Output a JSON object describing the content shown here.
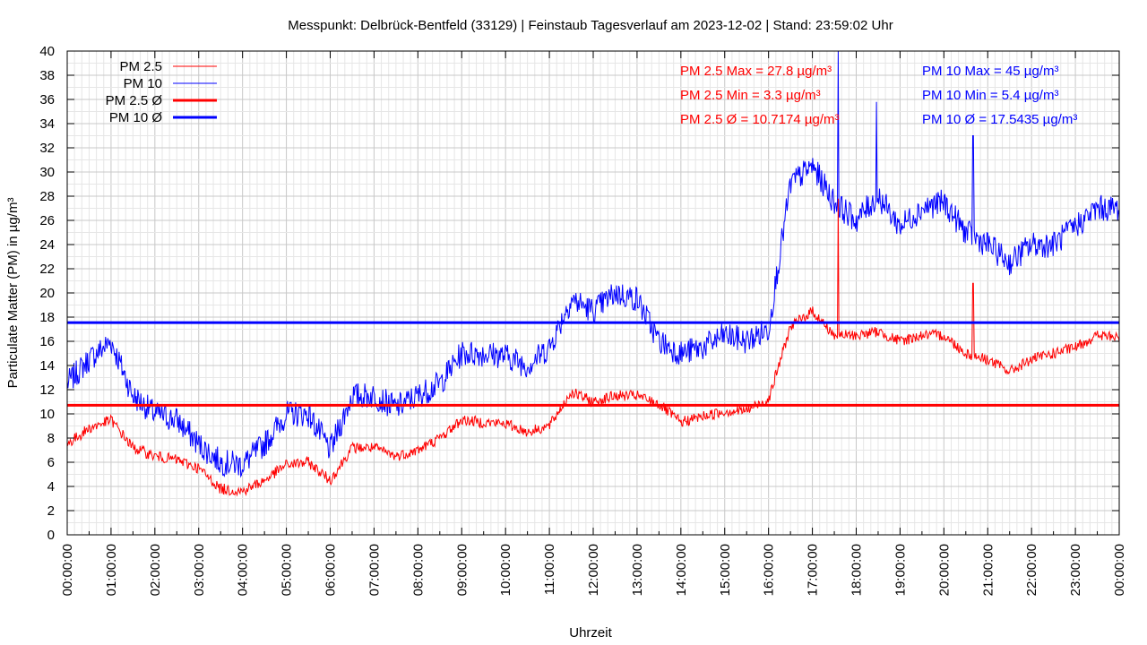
{
  "chart_data": {
    "type": "line",
    "title": "Messpunkt: Delbrück-Bentfeld (33129) | Feinstaub Tagesverlauf am 2023-12-02 | Stand: 23:59:02 Uhr",
    "xlabel": "Uhrzeit",
    "ylabel": "Particulate Matter (PM) in µg/m³",
    "ylim": [
      0,
      40
    ],
    "xlim": [
      "00:00:00",
      "24:00:00"
    ],
    "grid": true,
    "legend_position": "top-left",
    "x_ticks": [
      "00:00:00",
      "01:00:00",
      "02:00:00",
      "03:00:00",
      "04:00:00",
      "05:00:00",
      "06:00:00",
      "07:00:00",
      "08:00:00",
      "09:00:00",
      "10:00:00",
      "11:00:00",
      "12:00:00",
      "13:00:00",
      "14:00:00",
      "15:00:00",
      "16:00:00",
      "17:00:00",
      "18:00:00",
      "19:00:00",
      "20:00:00",
      "21:00:00",
      "22:00:00",
      "23:00:00",
      "00:00:00"
    ],
    "y_ticks": [
      0,
      2,
      4,
      6,
      8,
      10,
      12,
      14,
      16,
      18,
      20,
      22,
      24,
      26,
      28,
      30,
      32,
      34,
      36,
      38,
      40
    ],
    "x": [
      "00:00",
      "00:30",
      "01:00",
      "01:30",
      "02:00",
      "02:30",
      "03:00",
      "03:30",
      "04:00",
      "04:30",
      "05:00",
      "05:30",
      "06:00",
      "06:30",
      "07:00",
      "07:30",
      "08:00",
      "08:30",
      "09:00",
      "09:30",
      "10:00",
      "10:30",
      "11:00",
      "11:30",
      "12:00",
      "12:30",
      "13:00",
      "13:30",
      "14:00",
      "14:30",
      "15:00",
      "15:30",
      "16:00",
      "16:30",
      "17:00",
      "17:30",
      "18:00",
      "18:30",
      "19:00",
      "19:30",
      "20:00",
      "20:30",
      "21:00",
      "21:30",
      "22:00",
      "22:30",
      "23:00",
      "23:30",
      "24:00"
    ],
    "series": [
      {
        "name": "PM 2.5",
        "color": "#ff0000",
        "values": [
          7.5,
          8.8,
          9.5,
          7.2,
          6.5,
          6.2,
          5.5,
          3.8,
          3.6,
          4.5,
          5.8,
          6.0,
          4.5,
          7.2,
          7.2,
          6.5,
          7.0,
          8.0,
          9.5,
          9.3,
          9.2,
          8.5,
          9.0,
          11.8,
          11.0,
          11.5,
          11.5,
          10.8,
          9.3,
          9.8,
          10.2,
          10.3,
          11.2,
          17.2,
          18.5,
          16.5,
          16.5,
          16.8,
          16.0,
          16.5,
          16.5,
          15.0,
          14.5,
          13.5,
          14.5,
          15.0,
          15.5,
          16.5,
          16.3
        ]
      },
      {
        "name": "PM 10",
        "color": "#0000ff",
        "values": [
          12.5,
          14.5,
          16.0,
          11.5,
          10.0,
          9.5,
          7.5,
          6.0,
          5.8,
          7.5,
          10.0,
          10.0,
          7.0,
          11.5,
          11.5,
          10.5,
          11.5,
          12.5,
          15.0,
          15.0,
          14.8,
          14.0,
          15.5,
          19.5,
          18.5,
          20.0,
          19.5,
          16.0,
          15.0,
          15.5,
          16.5,
          16.0,
          17.0,
          29.0,
          30.5,
          27.5,
          26.0,
          28.0,
          25.5,
          27.0,
          27.5,
          25.0,
          24.0,
          22.5,
          24.0,
          24.0,
          25.5,
          27.0,
          27.0
        ]
      }
    ],
    "peaks": [
      {
        "series": "PM 2.5",
        "x": "17:35",
        "value": 27.8
      },
      {
        "series": "PM 10",
        "x": "17:35",
        "value": 45
      },
      {
        "series": "PM 10",
        "x": "18:28",
        "value": 35.8
      },
      {
        "series": "PM 2.5",
        "x": "20:40",
        "value": 20.8
      },
      {
        "series": "PM 10",
        "x": "20:40",
        "value": 33.0
      }
    ],
    "averages": [
      {
        "name": "PM 2.5 Ø",
        "color": "#ff0000",
        "value": 10.7174
      },
      {
        "name": "PM 10 Ø",
        "color": "#0000ff",
        "value": 17.5435
      }
    ],
    "legend": [
      {
        "label": "PM 2.5",
        "color": "#ff0000",
        "style": "thin"
      },
      {
        "label": "PM 10",
        "color": "#0000ff",
        "style": "thin"
      },
      {
        "label": "PM 2.5 Ø",
        "color": "#ff0000",
        "style": "thick"
      },
      {
        "label": "PM 10 Ø",
        "color": "#0000ff",
        "style": "thick"
      }
    ],
    "annotations": {
      "pm25_max": "PM 2.5 Max = 27.8 µg/m³",
      "pm25_min": "PM 2.5 Min = 3.3 µg/m³",
      "pm25_avg": "PM 2.5 Ø = 10.7174 µg/m³",
      "pm10_max": "PM 10 Max = 45 µg/m³",
      "pm10_min": "PM 10 Min = 5.4 µg/m³",
      "pm10_avg": "PM 10 Ø = 17.5435 µg/m³"
    }
  }
}
